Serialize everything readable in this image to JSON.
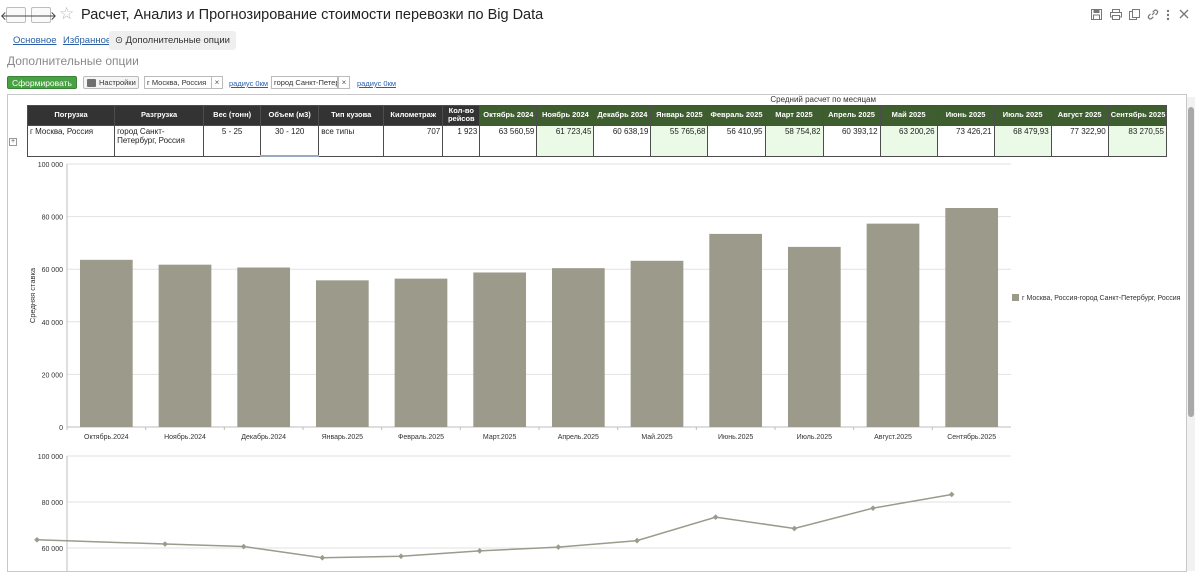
{
  "window": {
    "title": "Расчет, Анализ и Прогнозирование стоимости перевозки по Big Data",
    "back_glyph": "🡐",
    "forward_glyph": "🡒",
    "star_glyph": "☆",
    "icons": [
      "save-icon",
      "print-icon",
      "copy-icon",
      "link-icon",
      "more-icon",
      "close-icon"
    ]
  },
  "tabs": {
    "main": "Основное",
    "favorites": "Избранное",
    "options": "Дополнительные опции",
    "options_icon": "⊙"
  },
  "section_title": "Дополнительные опции",
  "toolbar": {
    "generate_label": "Сформировать",
    "settings_label": "Настройки",
    "from_value": "г Москва, Россия",
    "from_radius": "радиус 0км",
    "to_value": "город Санкт-Петерб",
    "to_radius": "радиус 0км",
    "clear_glyph": "×"
  },
  "table": {
    "group_caption": "Средний расчет по месяцам",
    "headers": {
      "loading": "Погрузка",
      "unloading": "Разгрузка",
      "weight": "Вес (тонн)",
      "volume": "Объем (м3)",
      "body": "Тип кузова",
      "km": "Километраж",
      "trips": "Кол-во рейсов"
    },
    "months": [
      "Октябрь 2024",
      "Ноябрь 2024",
      "Декабрь 2024",
      "Январь 2025",
      "Февраль 2025",
      "Март 2025",
      "Апрель 2025",
      "Май 2025",
      "Июнь 2025",
      "Июль 2025",
      "Август 2025",
      "Сентябрь 2025"
    ],
    "row": {
      "loading": "г Москва, Россия",
      "unloading": "город Санкт-Петербург, Россия",
      "weight": "5 - 25",
      "volume": "30 - 120",
      "body": "все типы",
      "km": "707",
      "trips": "1 923",
      "values": [
        "63 560,59",
        "61 723,45",
        "60 638,19",
        "55 765,68",
        "56 410,95",
        "58 754,82",
        "60 393,12",
        "63 200,26",
        "73 426,21",
        "68 479,93",
        "77 322,90",
        "83 270,55"
      ],
      "highlight": [
        false,
        true,
        false,
        true,
        false,
        true,
        false,
        true,
        false,
        true,
        false,
        true
      ]
    },
    "expand_glyph": "+"
  },
  "colors": {
    "bar": "#9c9a8b",
    "line": "#9c9a8b",
    "header_dark": "#333333",
    "header_green": "#3f5e30",
    "highlight": "#eafae6",
    "grid": "#e2e2e2"
  },
  "chart_data": [
    {
      "type": "bar",
      "title": "",
      "ylabel": "Средняя ставка",
      "xlabel": "",
      "ylim": [
        0,
        100000
      ],
      "yticks": [
        0,
        20000,
        40000,
        60000,
        80000,
        100000
      ],
      "ytick_labels": [
        "0",
        "20 000",
        "40 000",
        "60 000",
        "80 000",
        "100 000"
      ],
      "categories": [
        "Октябрь.2024",
        "Ноябрь.2024",
        "Декабрь.2024",
        "Январь.2025",
        "Февраль.2025",
        "Март.2025",
        "Апрель.2025",
        "Май.2025",
        "Июнь.2025",
        "Июль.2025",
        "Август.2025",
        "Сентябрь.2025"
      ],
      "series": [
        {
          "name": "г Москва, Россия-город Санкт-Петербург, Россия",
          "values": [
            63560.59,
            61723.45,
            60638.19,
            55765.68,
            56410.95,
            58754.82,
            60393.12,
            63200.26,
            73426.21,
            68479.93,
            77322.9,
            83270.55
          ]
        }
      ],
      "legend": "right",
      "grid": true
    },
    {
      "type": "line",
      "title": "",
      "ylim": [
        50000,
        100000
      ],
      "yticks": [
        60000,
        80000,
        100000
      ],
      "ytick_labels": [
        "60 000",
        "80 000",
        "100 000"
      ],
      "categories": [
        "Октябрь.2024",
        "Ноябрь.2024",
        "Декабрь.2024",
        "Январь.2025",
        "Февраль.2025",
        "Март.2025",
        "Апрель.2025",
        "Май.2025",
        "Июнь.2025",
        "Июль.2025",
        "Август.2025",
        "Сентябрь.2025"
      ],
      "series": [
        {
          "name": "г Москва, Россия-город Санкт-Петербург, Россия",
          "values": [
            63560.59,
            61723.45,
            60638.19,
            55765.68,
            56410.95,
            58754.82,
            60393.12,
            63200.26,
            73426.21,
            68479.93,
            77322.9,
            83270.55
          ]
        }
      ],
      "grid": true
    }
  ]
}
